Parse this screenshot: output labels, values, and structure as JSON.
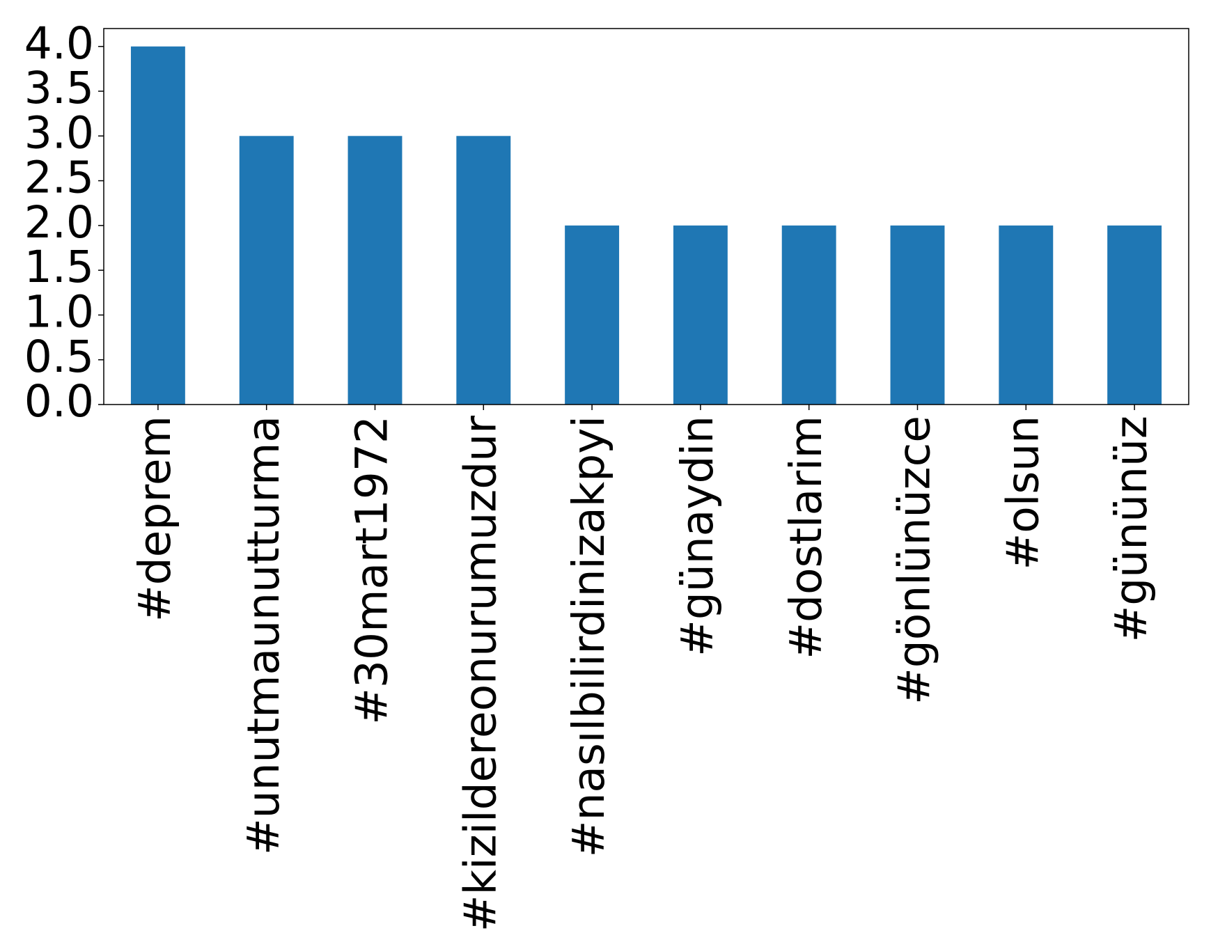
{
  "chart_data": {
    "type": "bar",
    "categories": [
      "#deprem",
      "#unutmaunutturma",
      "#30mart1972",
      "#kizildereonurumuzdur",
      "#nasılbilirdinizakpyi",
      "#günaydin",
      "#dostlarim",
      "#gönlünüzce",
      "#olsun",
      "#gününüz"
    ],
    "values": [
      4,
      3,
      3,
      3,
      2,
      2,
      2,
      2,
      2,
      2
    ],
    "color": "#1f77b4",
    "ylim": [
      0,
      4.2
    ],
    "yticks": [
      {
        "value": 0,
        "label": "0.0"
      },
      0.5,
      {
        "value": 1,
        "label": "1.0"
      },
      1.5,
      {
        "value": 2,
        "label": "2.0"
      },
      2.5,
      {
        "value": 3,
        "label": "3.0"
      },
      3.5,
      {
        "value": 4,
        "label": "4.0"
      }
    ],
    "grid": false
  }
}
